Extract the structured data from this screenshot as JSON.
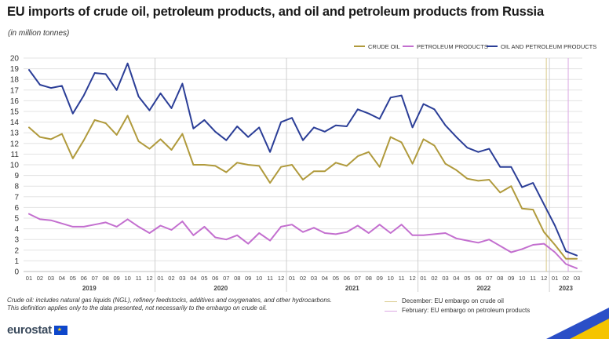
{
  "header": {
    "title": "EU imports of crude oil, petroleum products, and oil and petroleum products from Russia",
    "subtitle": "(in million tonnes)"
  },
  "footnotes": {
    "line1": "Crude oil: includes natural gas liquids (NGL), refinery feedstocks, additives and oxygenates, and other hydrocarbons.",
    "line2": "This definition applies only to the data presented, not necessarily to the embargo on crude oil."
  },
  "embargo_notes": {
    "crude": "December: EU embargo on crude oil",
    "petroleum": "February: EU embargo on petroleum products"
  },
  "logo": {
    "text": "eurostat"
  },
  "colors": {
    "crude": "#b09a3c",
    "petroleum": "#c36fcf",
    "total": "#2b3e97",
    "crude_embargo": "#d9c98a",
    "petroleum_embargo": "#dca8e4",
    "grid": "#e3e3e3"
  },
  "chart_data": {
    "type": "line",
    "title": "EU imports of crude oil, petroleum products, and oil and petroleum products from Russia",
    "ylabel": "",
    "xlabel": "",
    "ylim": [
      0,
      20
    ],
    "y_ticks": [
      0,
      1,
      2,
      3,
      4,
      5,
      6,
      7,
      8,
      9,
      10,
      11,
      12,
      13,
      14,
      15,
      16,
      17,
      18,
      19,
      20
    ],
    "grid": true,
    "legend": "top-right",
    "month_labels": [
      "01",
      "02",
      "03",
      "04",
      "05",
      "06",
      "07",
      "08",
      "09",
      "10",
      "11",
      "12"
    ],
    "years": [
      "2019",
      "2020",
      "2021",
      "2022",
      "2023"
    ],
    "x": [
      "2019-01",
      "2019-02",
      "2019-03",
      "2019-04",
      "2019-05",
      "2019-06",
      "2019-07",
      "2019-08",
      "2019-09",
      "2019-10",
      "2019-11",
      "2019-12",
      "2020-01",
      "2020-02",
      "2020-03",
      "2020-04",
      "2020-05",
      "2020-06",
      "2020-07",
      "2020-08",
      "2020-09",
      "2020-10",
      "2020-11",
      "2020-12",
      "2021-01",
      "2021-02",
      "2021-03",
      "2021-04",
      "2021-05",
      "2021-06",
      "2021-07",
      "2021-08",
      "2021-09",
      "2021-10",
      "2021-11",
      "2021-12",
      "2022-01",
      "2022-02",
      "2022-03",
      "2022-04",
      "2022-05",
      "2022-06",
      "2022-07",
      "2022-08",
      "2022-09",
      "2022-10",
      "2022-11",
      "2022-12",
      "2023-01",
      "2023-02",
      "2023-03"
    ],
    "series": [
      {
        "key": "crude",
        "name": "CRUDE OIL",
        "values": [
          13.5,
          12.6,
          12.4,
          12.9,
          10.6,
          12.3,
          14.2,
          13.9,
          12.8,
          14.6,
          12.2,
          11.5,
          12.4,
          11.4,
          12.9,
          10.0,
          10.0,
          9.9,
          9.3,
          10.2,
          10.0,
          9.9,
          8.3,
          9.8,
          10.0,
          8.6,
          9.4,
          9.4,
          10.2,
          9.9,
          10.8,
          11.2,
          9.8,
          12.6,
          12.1,
          10.1,
          12.4,
          11.8,
          10.1,
          9.5,
          8.7,
          8.5,
          8.6,
          7.4,
          8.0,
          5.9,
          5.8,
          3.7,
          2.5,
          1.2,
          1.2
        ]
      },
      {
        "key": "petroleum",
        "name": "PETROLEUM PRODUCTS",
        "values": [
          5.4,
          4.9,
          4.8,
          4.5,
          4.2,
          4.2,
          4.4,
          4.6,
          4.2,
          4.9,
          4.2,
          3.6,
          4.3,
          3.9,
          4.7,
          3.4,
          4.2,
          3.2,
          3.0,
          3.4,
          2.6,
          3.6,
          2.9,
          4.2,
          4.4,
          3.7,
          4.1,
          3.6,
          3.5,
          3.7,
          4.3,
          3.6,
          4.4,
          3.6,
          4.4,
          3.4,
          3.4,
          3.5,
          3.6,
          3.1,
          2.9,
          2.7,
          3.0,
          2.4,
          1.8,
          2.1,
          2.5,
          2.6,
          1.8,
          0.7,
          0.3
        ]
      },
      {
        "key": "total",
        "name": "OIL AND PETROLEUM PRODUCTS",
        "values": [
          18.9,
          17.5,
          17.2,
          17.4,
          14.8,
          16.5,
          18.6,
          18.5,
          17.0,
          19.5,
          16.4,
          15.1,
          16.7,
          15.3,
          17.6,
          13.4,
          14.2,
          13.1,
          12.3,
          13.6,
          12.6,
          13.5,
          11.2,
          14.0,
          14.4,
          12.3,
          13.5,
          13.1,
          13.7,
          13.6,
          15.2,
          14.8,
          14.3,
          16.3,
          16.5,
          13.5,
          15.7,
          15.2,
          13.7,
          12.6,
          11.6,
          11.2,
          11.5,
          9.8,
          9.8,
          7.9,
          8.3,
          6.3,
          4.3,
          1.9,
          1.5
        ]
      }
    ],
    "embargo_lines": [
      {
        "key": "crude",
        "x": "2022-12"
      },
      {
        "key": "petroleum",
        "x": "2023-02"
      }
    ]
  }
}
